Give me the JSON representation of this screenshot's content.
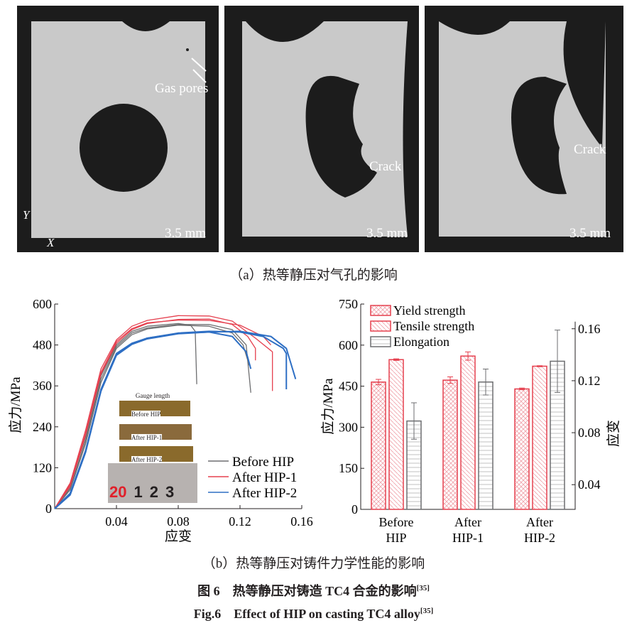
{
  "panel_a": {
    "images": [
      {
        "annotation": "Gas pores",
        "scale": "3.5 mm"
      },
      {
        "annotation": "Crack",
        "scale": "3.5 mm"
      },
      {
        "annotation": "Crack",
        "scale": "3.5 mm"
      }
    ],
    "axis_y": "Y",
    "axis_x": "X",
    "caption": "（a）热等静压对气孔的影响"
  },
  "caption_b": "（b）热等静压对铸件力学性能的影响",
  "figure_title_cn": "图 6　热等静压对铸造 TC4 合金的影响",
  "figure_title_cn_ref": "[35]",
  "figure_title_en": "Fig.6　Effect of HIP on casting TC4 alloy",
  "figure_title_en_ref": "[35]",
  "inset": {
    "gauge": "Gauge length",
    "labels": [
      "Before HIP",
      "After HIP-1",
      "After HIP-2"
    ],
    "ruler": [
      "20",
      "1",
      "2",
      "3"
    ]
  },
  "colors": {
    "before": "#6d6e70",
    "hip1": "#e5404f",
    "hip2": "#2e6fc4"
  },
  "chart_data": [
    {
      "type": "line",
      "xlabel": "应变",
      "ylabel": "应力/MPa",
      "xlim": [
        0,
        0.16
      ],
      "ylim": [
        0,
        600
      ],
      "xticks": [
        "0.04",
        "0.08",
        "0.12",
        "0.16"
      ],
      "yticks": [
        "0",
        "120",
        "240",
        "360",
        "480",
        "600"
      ],
      "legend": "bottom-right",
      "series": [
        {
          "name": "Before HIP",
          "color": "#6d6e70",
          "curves": [
            [
              [
                0,
                0
              ],
              [
                0.01,
                70
              ],
              [
                0.02,
                210
              ],
              [
                0.03,
                390
              ],
              [
                0.04,
                480
              ],
              [
                0.05,
                520
              ],
              [
                0.06,
                535
              ],
              [
                0.08,
                543
              ],
              [
                0.088,
                538
              ],
              [
                0.091,
                520
              ],
              [
                0.092,
                365
              ]
            ],
            [
              [
                0,
                0
              ],
              [
                0.01,
                60
              ],
              [
                0.02,
                200
              ],
              [
                0.03,
                380
              ],
              [
                0.04,
                475
              ],
              [
                0.05,
                515
              ],
              [
                0.06,
                530
              ],
              [
                0.08,
                540
              ],
              [
                0.1,
                540
              ],
              [
                0.115,
                525
              ],
              [
                0.124,
                480
              ],
              [
                0.127,
                340
              ]
            ],
            [
              [
                0,
                0
              ],
              [
                0.01,
                55
              ],
              [
                0.02,
                190
              ],
              [
                0.03,
                370
              ],
              [
                0.04,
                470
              ],
              [
                0.05,
                510
              ],
              [
                0.06,
                527
              ],
              [
                0.08,
                538
              ],
              [
                0.1,
                535
              ],
              [
                0.115,
                515
              ],
              [
                0.122,
                480
              ],
              [
                0.126,
                420
              ]
            ]
          ]
        },
        {
          "name": "After HIP-1",
          "color": "#e5404f",
          "curves": [
            [
              [
                0,
                0
              ],
              [
                0.01,
                75
              ],
              [
                0.02,
                230
              ],
              [
                0.03,
                410
              ],
              [
                0.04,
                495
              ],
              [
                0.05,
                535
              ],
              [
                0.06,
                552
              ],
              [
                0.08,
                566
              ],
              [
                0.1,
                565
              ],
              [
                0.115,
                550
              ],
              [
                0.13,
                500
              ],
              [
                0.141,
                460
              ],
              [
                0.141,
                345
              ]
            ],
            [
              [
                0,
                0
              ],
              [
                0.01,
                65
              ],
              [
                0.02,
                215
              ],
              [
                0.03,
                395
              ],
              [
                0.04,
                485
              ],
              [
                0.05,
                525
              ],
              [
                0.06,
                543
              ],
              [
                0.08,
                555
              ],
              [
                0.1,
                556
              ],
              [
                0.115,
                540
              ],
              [
                0.125,
                505
              ],
              [
                0.13,
                470
              ],
              [
                0.13,
                435
              ]
            ],
            [
              [
                0,
                0
              ],
              [
                0.01,
                70
              ],
              [
                0.02,
                220
              ],
              [
                0.03,
                400
              ],
              [
                0.04,
                490
              ],
              [
                0.05,
                528
              ],
              [
                0.06,
                545
              ],
              [
                0.08,
                553
              ],
              [
                0.1,
                552
              ],
              [
                0.12,
                538
              ],
              [
                0.135,
                505
              ],
              [
                0.14,
                480
              ]
            ]
          ]
        },
        {
          "name": "After HIP-2",
          "color": "#2e6fc4",
          "curves": [
            [
              [
                0,
                0
              ],
              [
                0.01,
                45
              ],
              [
                0.02,
                170
              ],
              [
                0.03,
                350
              ],
              [
                0.04,
                455
              ],
              [
                0.05,
                485
              ],
              [
                0.06,
                500
              ],
              [
                0.08,
                515
              ],
              [
                0.1,
                520
              ],
              [
                0.12,
                518
              ],
              [
                0.135,
                505
              ],
              [
                0.148,
                470
              ],
              [
                0.15,
                455
              ],
              [
                0.15,
                350
              ]
            ],
            [
              [
                0,
                0
              ],
              [
                0.01,
                40
              ],
              [
                0.02,
                165
              ],
              [
                0.03,
                345
              ],
              [
                0.04,
                450
              ],
              [
                0.05,
                482
              ],
              [
                0.06,
                498
              ],
              [
                0.08,
                513
              ],
              [
                0.1,
                518
              ],
              [
                0.12,
                520
              ],
              [
                0.14,
                505
              ],
              [
                0.15,
                470
              ],
              [
                0.156,
                380
              ]
            ],
            [
              [
                0,
                0
              ],
              [
                0.01,
                42
              ],
              [
                0.02,
                168
              ],
              [
                0.03,
                348
              ],
              [
                0.04,
                452
              ],
              [
                0.05,
                484
              ],
              [
                0.06,
                500
              ],
              [
                0.08,
                514
              ],
              [
                0.1,
                518
              ],
              [
                0.115,
                505
              ],
              [
                0.124,
                460
              ],
              [
                0.127,
                410
              ]
            ]
          ]
        }
      ]
    },
    {
      "type": "bar",
      "categories": [
        "Before HIP",
        "After HIP-1",
        "After HIP-2"
      ],
      "category_lines": [
        [
          "Before",
          "HIP"
        ],
        [
          "After",
          "HIP-1"
        ],
        [
          "After",
          "HIP-2"
        ]
      ],
      "ylabel": "应力/MPa",
      "ylabel_right": "应变",
      "ylim": [
        0,
        750
      ],
      "ylim_right": [
        0.021,
        0.179
      ],
      "yticks": [
        "0",
        "150",
        "300",
        "450",
        "600",
        "750"
      ],
      "yticks_right": [
        "0.04",
        "0.08",
        "0.12",
        "0.16"
      ],
      "legend": "top-left",
      "series": [
        {
          "name": "Yield strength",
          "axis": "left",
          "values": [
            465,
            472,
            440
          ],
          "errors": [
            10,
            12,
            3
          ],
          "pattern": "crosshatch",
          "color": "#e5404f"
        },
        {
          "name": "Tensile strength",
          "axis": "left",
          "values": [
            547,
            560,
            523
          ],
          "errors": [
            3,
            15,
            2
          ],
          "pattern": "diagonal",
          "color": "#e5404f"
        },
        {
          "name": "Elongation",
          "axis": "right",
          "values": [
            0.089,
            0.119,
            0.135
          ],
          "errors": [
            0.014,
            0.01,
            0.024
          ],
          "pattern": "horizontal",
          "color": "#6d6e70"
        }
      ]
    }
  ]
}
